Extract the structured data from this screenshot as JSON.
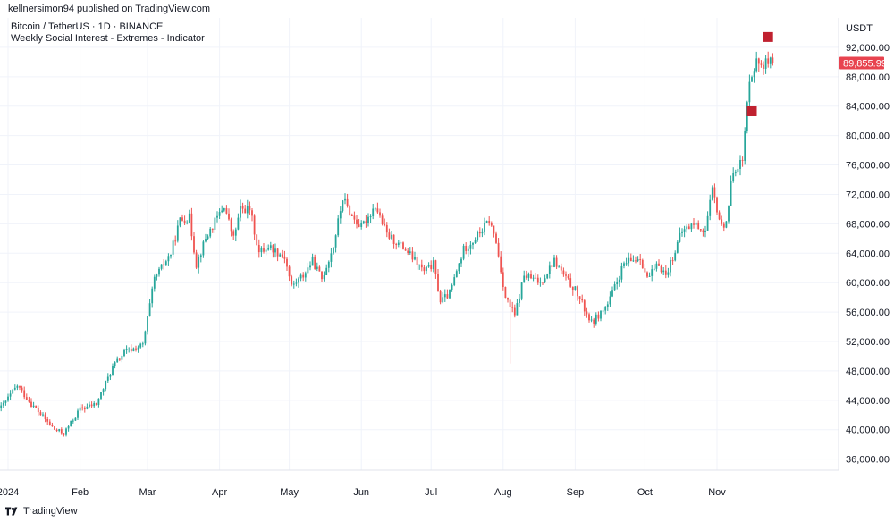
{
  "header": {
    "published_by": "kellnersimon94 published on TradingView.com",
    "symbol_line": "Bitcoin / TetherUS · 1D · BINANCE",
    "indicator_line": "Weekly Social Interest - Extremes - Indicator"
  },
  "price_axis": {
    "currency": "USDT"
  },
  "footer": {
    "brand": "TradingView"
  },
  "colors": {
    "up": "#26a69a",
    "down": "#ef5350",
    "marker": "#c0212f",
    "last_price_bg": "#e8434f",
    "grid": "#f0f3fa",
    "axis_text": "#131722"
  },
  "icons": {
    "brand_logo": "tradingview-logo-icon"
  },
  "chart_data": {
    "type": "candlestick",
    "title": "Bitcoin / TetherUS · 1D · BINANCE",
    "ylabel": "USDT",
    "ylim": [
      34500,
      96000
    ],
    "grid": true,
    "y_ticks": [
      36000,
      40000,
      44000,
      48000,
      52000,
      56000,
      60000,
      64000,
      68000,
      72000,
      76000,
      80000,
      84000,
      88000,
      92000
    ],
    "y_tick_labels": [
      "36,000.00",
      "40,000.00",
      "44,000.00",
      "48,000.00",
      "52,000.00",
      "56,000.00",
      "60,000.00",
      "64,000.00",
      "68,000.00",
      "72,000.00",
      "76,000.00",
      "80,000.00",
      "84,000.00",
      "88,000.00",
      "92,000.00"
    ],
    "x_ticks": [
      "2024",
      "Feb",
      "Mar",
      "Apr",
      "May",
      "Jun",
      "Jul",
      "Aug",
      "Sep",
      "Oct",
      "Nov"
    ],
    "x_tick_days": [
      0,
      31,
      60,
      91,
      121,
      152,
      182,
      213,
      244,
      274,
      305
    ],
    "last_price": 89855.99,
    "last_price_label": "89,855.99",
    "markers": [
      {
        "day": 320,
        "price": 83300
      },
      {
        "day": 327,
        "price": 93400
      }
    ],
    "key_points": [
      [
        -3,
        43000
      ],
      [
        4,
        46000
      ],
      [
        10,
        43500
      ],
      [
        20,
        40000
      ],
      [
        24,
        39500
      ],
      [
        31,
        42800
      ],
      [
        38,
        43500
      ],
      [
        45,
        48500
      ],
      [
        50,
        50500
      ],
      [
        58,
        51500
      ],
      [
        63,
        60500
      ],
      [
        70,
        64000
      ],
      [
        74,
        68500
      ],
      [
        78,
        68800
      ],
      [
        81,
        62500
      ],
      [
        85,
        66000
      ],
      [
        93,
        70500
      ],
      [
        97,
        66000
      ],
      [
        100,
        70000
      ],
      [
        104,
        70000
      ],
      [
        108,
        64000
      ],
      [
        112,
        65000
      ],
      [
        119,
        63500
      ],
      [
        122,
        59500
      ],
      [
        127,
        61000
      ],
      [
        131,
        63000
      ],
      [
        135,
        60500
      ],
      [
        140,
        65000
      ],
      [
        144,
        71500
      ],
      [
        148,
        69000
      ],
      [
        152,
        67500
      ],
      [
        158,
        70500
      ],
      [
        163,
        66500
      ],
      [
        171,
        64500
      ],
      [
        179,
        61500
      ],
      [
        183,
        62500
      ],
      [
        186,
        57500
      ],
      [
        190,
        58500
      ],
      [
        196,
        64500
      ],
      [
        201,
        66000
      ],
      [
        207,
        68500
      ],
      [
        210,
        65500
      ],
      [
        214,
        58000
      ],
      [
        218,
        55500
      ],
      [
        222,
        61000
      ],
      [
        229,
        60000
      ],
      [
        235,
        63000
      ],
      [
        240,
        60500
      ],
      [
        244,
        59000
      ],
      [
        251,
        54500
      ],
      [
        258,
        57000
      ],
      [
        265,
        62500
      ],
      [
        272,
        63500
      ],
      [
        275,
        60500
      ],
      [
        280,
        62500
      ],
      [
        283,
        61000
      ],
      [
        290,
        67000
      ],
      [
        295,
        68000
      ],
      [
        300,
        67000
      ],
      [
        303,
        72500
      ],
      [
        307,
        67500
      ],
      [
        309,
        68500
      ],
      [
        312,
        75500
      ],
      [
        316,
        76500
      ],
      [
        319,
        88000
      ],
      [
        322,
        90000
      ],
      [
        326,
        89800
      ],
      [
        329,
        89856
      ]
    ]
  }
}
